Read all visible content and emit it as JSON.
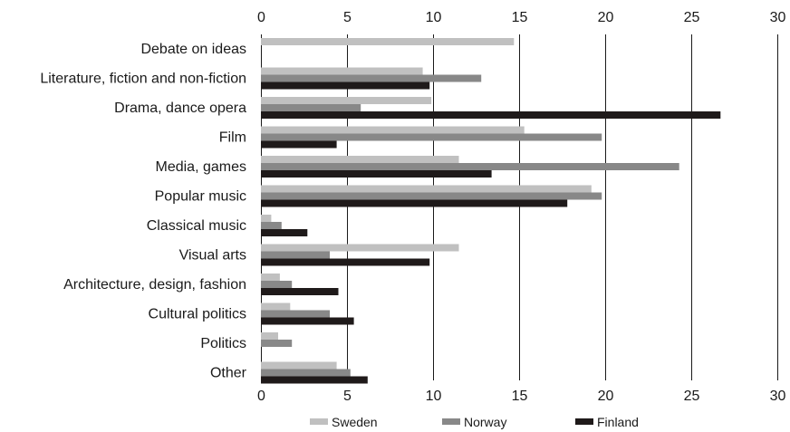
{
  "chart_data": {
    "type": "bar",
    "orientation": "horizontal",
    "title": "",
    "xlabel": "",
    "ylabel": "",
    "xlim": [
      0,
      30
    ],
    "xticks": [
      0,
      5,
      10,
      15,
      20,
      25,
      30
    ],
    "xaxis_position": "top",
    "grid": "vertical",
    "legend_position": "bottom",
    "categories": [
      "Debate on ideas",
      "Literature, fiction and non-fiction",
      "Drama, dance opera",
      "Film",
      "Media, games",
      "Popular music",
      "Classical music",
      "Visual arts",
      "Architecture, design, fashion",
      "Cultural politics",
      "Politics",
      "Other"
    ],
    "series": [
      {
        "name": "Sweden",
        "color": "#c0c0c0",
        "values": [
          14.7,
          9.4,
          9.9,
          15.3,
          11.5,
          19.2,
          0.6,
          11.5,
          1.1,
          1.7,
          1.0,
          4.4
        ]
      },
      {
        "name": "Norway",
        "color": "#888888",
        "values": [
          0,
          12.8,
          5.8,
          19.8,
          24.3,
          19.8,
          1.2,
          4.0,
          1.8,
          4.0,
          1.8,
          5.2
        ]
      },
      {
        "name": "Finland",
        "color": "#1f1a1a",
        "values": [
          0,
          9.8,
          26.7,
          4.4,
          13.4,
          17.8,
          2.7,
          9.8,
          4.5,
          5.4,
          0,
          6.2
        ]
      }
    ]
  }
}
